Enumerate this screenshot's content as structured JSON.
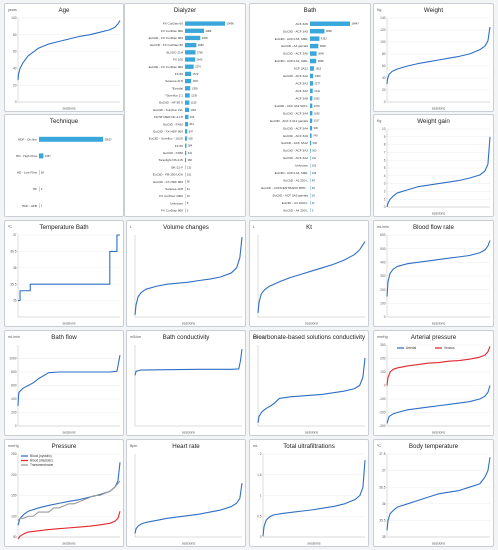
{
  "chart_data": [
    {
      "id": "age",
      "type": "line",
      "title": "Age",
      "unit": "years",
      "xlabel": "sessions",
      "ylim": [
        0,
        100
      ],
      "yticks": [
        0,
        20,
        40,
        60,
        80,
        100
      ],
      "series": [
        {
          "color": "#2f6fc4",
          "x": [
            0,
            0.005,
            0.02,
            0.05,
            0.1,
            0.2,
            0.3,
            0.4,
            0.5,
            0.6,
            0.7,
            0.8,
            0.9,
            0.95,
            0.98,
            1
          ],
          "values": [
            26,
            33,
            40,
            47,
            55,
            64,
            69,
            72,
            75,
            78,
            80,
            83,
            86,
            89,
            93,
            97
          ]
        }
      ]
    },
    {
      "id": "dialyzer",
      "type": "bar",
      "title": "Dialyzer",
      "color": "#3aa7dc",
      "categories": [
        "FX CorDiax 60",
        "FX CorDiax 800",
        "EuCliD - FX CorDiax 600",
        "EuCliD - FX CorDiax 80",
        "ELISIO 21H",
        "FX 100",
        "EuCliD - FX CorDiax 800",
        "FX 80",
        "Solacea 21H",
        "*Evodial",
        "*Sureflux 2.1",
        "EuCliD - HF 80 S",
        "EuCliD - Sureflux 21L",
        "FILTRYZER NF-2.1H",
        "EuCliD - FX60",
        "EuCliD - FX-HDF 600",
        "EuCliD - Sureflux - 15UX",
        "FX 60",
        "EuCliD - FX80",
        "Toraylight NS 21S",
        "BK-21-F",
        "EuCliD - FB-190 UGA",
        "EuCliD - FX-HDF 800",
        "Solacea 19H",
        "FX CorDiax 1000",
        "Unknown",
        "FX CorDiax 800"
      ],
      "values": [
        10496,
        4989,
        4008,
        2980,
        2760,
        2640,
        2276,
        1579,
        1607,
        1358,
        1239,
        1155,
        1061,
        916,
        812,
        597,
        505,
        384,
        331,
        280,
        132,
        101,
        90,
        51,
        20,
        8,
        3
      ]
    },
    {
      "id": "bath",
      "type": "bar",
      "title": "Bath",
      "color": "#3aa7dc",
      "categories": [
        "ACF 3A5",
        "EuCliD - ACF 3A5",
        "EuCliD - ACF3 A5, 600L",
        "EuCliD - A4 garrafa",
        "EuCliD - ACF 3A6",
        "EuCliD - ACF3 A2, 600L",
        "ACF 3A12",
        "EuCliD - ACF 3A2",
        "ACF 3A3",
        "ACF 3A2",
        "ACF 3A6",
        "EuCliD - ACF 3A2 500 L",
        "EuCliD - ACF 3A4",
        "EuCliD - ACF 3 A12 garrafa",
        "EuCliD - ACF 3A4",
        "EuCliD - ACF 3A6",
        "EuCliD - ACF 3A12",
        "EuCliD - ACF 3A3",
        "EuCliD - ACF 3A2",
        "Unknown",
        "EuCliD - ACF3 A4, 600L",
        "EuCliD - A2 250 L",
        "EuCliD - CONCENTRADO BHD...",
        "EuCliD - ACF 3A5 garrafa",
        "EuCliD - A4 1000 L",
        "EuCliD - A4 250 L"
      ],
      "values": [
        18447,
        6668,
        4352,
        3848,
        3045,
        2868,
        1815,
        1450,
        1377,
        1241,
        1092,
        1070,
        1090,
        1017,
        936,
        749,
        536,
        303,
        211,
        162,
        106,
        49,
        25,
        18,
        11,
        3
      ]
    },
    {
      "id": "weight",
      "type": "line",
      "title": "Weight",
      "unit": "Kg",
      "xlabel": "sessions",
      "ylim": [
        0,
        140
      ],
      "yticks": [
        0,
        20,
        40,
        60,
        80,
        100,
        120,
        140
      ],
      "series": [
        {
          "color": "#2f6fc4",
          "x": [
            0,
            0.005,
            0.02,
            0.05,
            0.1,
            0.2,
            0.3,
            0.4,
            0.5,
            0.6,
            0.7,
            0.8,
            0.9,
            0.95,
            0.98,
            1
          ],
          "values": [
            30,
            38,
            46,
            51,
            55,
            60,
            64,
            67,
            70,
            73,
            76,
            80,
            87,
            93,
            102,
            125
          ]
        }
      ]
    },
    {
      "id": "technique",
      "type": "bar",
      "title": "Technique",
      "color": "#3aa7dc",
      "categories": [
        "HDF - On line",
        "HD - High Flow",
        "HD - Low Flow",
        "HF",
        "HDF - AFB"
      ],
      "values": [
        35637,
        2457,
        58,
        3,
        1
      ]
    },
    {
      "id": "weightgain",
      "type": "line",
      "title": "Weight gain",
      "unit": "Kg",
      "xlabel": "sessions",
      "ylim": [
        0,
        10
      ],
      "yticks": [
        0,
        1,
        2,
        3,
        4,
        5,
        6,
        7,
        8,
        9,
        10
      ],
      "series": [
        {
          "color": "#2f6fc4",
          "x": [
            0,
            0.01,
            0.03,
            0.06,
            0.1,
            0.2,
            0.3,
            0.4,
            0.5,
            0.6,
            0.7,
            0.8,
            0.9,
            0.95,
            0.98,
            1
          ],
          "values": [
            0,
            0.5,
            1,
            1.4,
            1.8,
            2.2,
            2.6,
            2.8,
            3.0,
            3.2,
            3.4,
            3.7,
            4.1,
            4.6,
            5.5,
            9
          ]
        }
      ]
    },
    {
      "id": "tempbath",
      "type": "line",
      "title": "Temperature Bath",
      "unit": "ºC",
      "xlabel": "sessions",
      "ylim": [
        34.5,
        37
      ],
      "yticks": [
        35,
        35.5,
        36,
        36.5,
        37
      ],
      "series": [
        {
          "color": "#2f6fc4",
          "x": [
            0,
            0.02,
            0.02,
            0.12,
            0.12,
            0.9,
            0.9,
            0.97,
            0.97,
            1
          ],
          "values": [
            35,
            35,
            35.3,
            35.3,
            35.5,
            35.5,
            36.5,
            36.5,
            37,
            37
          ]
        }
      ]
    },
    {
      "id": "volchanges",
      "type": "line",
      "title": "Volume changes",
      "unit": "L",
      "xlabel": "sessions",
      "ylim": [
        0,
        4
      ],
      "yticks": [],
      "series": [
        {
          "color": "#2f6fc4",
          "x": [
            0,
            0.01,
            0.03,
            0.06,
            0.1,
            0.2,
            0.3,
            0.4,
            0.5,
            0.6,
            0.7,
            0.8,
            0.9,
            0.95,
            0.98,
            1
          ],
          "values": [
            0.1,
            0.6,
            1.0,
            1.2,
            1.35,
            1.5,
            1.6,
            1.65,
            1.7,
            1.78,
            1.85,
            1.95,
            2.15,
            2.4,
            2.9,
            3.9
          ]
        }
      ]
    },
    {
      "id": "kt",
      "type": "line",
      "title": "Kt",
      "unit": "L",
      "xlabel": "sessions",
      "ylim": [
        0,
        100
      ],
      "yticks": [],
      "series": [
        {
          "color": "#2f6fc4",
          "x": [
            0,
            0.01,
            0.03,
            0.06,
            0.1,
            0.2,
            0.3,
            0.4,
            0.5,
            0.6,
            0.7,
            0.8,
            0.9,
            0.95,
            0.98,
            1
          ],
          "values": [
            5,
            18,
            28,
            33,
            37,
            43,
            48,
            52,
            56,
            60,
            64,
            69,
            76,
            82,
            88,
            92
          ]
        }
      ]
    },
    {
      "id": "bloodflow",
      "type": "line",
      "title": "Blood flow rate",
      "unit": "mL/min",
      "xlabel": "sessions",
      "ylim": [
        0,
        600
      ],
      "yticks": [
        0,
        100,
        200,
        300,
        400,
        500,
        600
      ],
      "series": [
        {
          "color": "#2f6fc4",
          "x": [
            0,
            0.01,
            0.03,
            0.06,
            0.1,
            0.2,
            0.3,
            0.4,
            0.5,
            0.6,
            0.7,
            0.8,
            0.9,
            0.95,
            0.98,
            1
          ],
          "values": [
            150,
            260,
            320,
            350,
            370,
            390,
            400,
            410,
            420,
            430,
            440,
            450,
            470,
            490,
            520,
            560
          ]
        }
      ]
    },
    {
      "id": "bathflow",
      "type": "line",
      "title": "Bath flow",
      "unit": "mL/min",
      "xlabel": "sessions",
      "ylim": [
        0,
        1200
      ],
      "yticks": [
        0,
        200,
        400,
        600,
        800,
        1000
      ],
      "series": [
        {
          "color": "#2f6fc4",
          "x": [
            0,
            0.005,
            0.01,
            0.03,
            0.05,
            0.1,
            0.15,
            0.2,
            0.3,
            0.4,
            0.5,
            0.6,
            0.7,
            0.8,
            0.9,
            0.97,
            1
          ],
          "values": [
            300,
            440,
            500,
            530,
            560,
            600,
            640,
            700,
            790,
            800,
            800,
            800,
            800,
            800,
            800,
            810,
            1050
          ]
        }
      ]
    },
    {
      "id": "bathcond",
      "type": "line",
      "title": "Bath conductivity",
      "unit": "mS/cm",
      "xlabel": "sessions",
      "ylim": [
        0,
        20
      ],
      "yticks": [],
      "series": [
        {
          "color": "#2f6fc4",
          "x": [
            0,
            0.01,
            0.05,
            0.3,
            0.6,
            0.9,
            0.97,
            0.985,
            1
          ],
          "values": [
            12.5,
            13.5,
            13.8,
            13.9,
            14,
            14,
            14.1,
            16,
            19
          ]
        }
      ]
    },
    {
      "id": "bicarbcond",
      "type": "line",
      "title": "Bicarbonate-based solutions conductivity",
      "unit": "mS/cm",
      "xlabel": "sessions",
      "ylim": [
        0,
        5
      ],
      "yticks": [],
      "series": [
        {
          "color": "#2f6fc4",
          "x": [
            0,
            0.01,
            0.04,
            0.08,
            0.12,
            0.16,
            0.2,
            0.3,
            0.4,
            0.5,
            0.6,
            0.7,
            0.8,
            0.9,
            0.95,
            0.98,
            1
          ],
          "values": [
            0.2,
            0.6,
            0.9,
            1.1,
            1.25,
            1.45,
            1.7,
            1.8,
            1.85,
            1.9,
            1.95,
            2.05,
            2.15,
            2.3,
            2.5,
            3.0,
            4.2
          ]
        }
      ]
    },
    {
      "id": "arterial",
      "type": "line",
      "title": "Arterial pressure",
      "unit": "mmHg",
      "xlabel": "sessions",
      "ylim": [
        -300,
        300
      ],
      "yticks": [
        -300,
        -200,
        -100,
        0,
        100,
        200,
        300
      ],
      "legend_position": "top",
      "series": [
        {
          "name": "Arterial",
          "color": "#2f6fc4",
          "x": [
            0,
            0.02,
            0.06,
            0.1,
            0.2,
            0.3,
            0.4,
            0.5,
            0.6,
            0.7,
            0.8,
            0.9,
            0.95,
            0.98,
            1
          ],
          "values": [
            -280,
            -230,
            -210,
            -200,
            -180,
            -170,
            -160,
            -150,
            -140,
            -130,
            -120,
            -100,
            -80,
            -50,
            0
          ]
        },
        {
          "name": "Venous",
          "color": "#e0282e",
          "x": [
            0,
            0.01,
            0.03,
            0.06,
            0.1,
            0.2,
            0.3,
            0.4,
            0.5,
            0.6,
            0.7,
            0.8,
            0.9,
            0.95,
            0.98,
            1
          ],
          "values": [
            0,
            60,
            100,
            120,
            130,
            145,
            155,
            165,
            170,
            180,
            185,
            195,
            210,
            225,
            250,
            290
          ]
        }
      ]
    },
    {
      "id": "pressure",
      "type": "line",
      "title": "Pressure",
      "unit": "mmHg",
      "xlabel": "sessions",
      "ylim": [
        50,
        250
      ],
      "yticks": [
        50,
        100,
        150,
        200,
        250
      ],
      "legend_position": "top-left",
      "series": [
        {
          "name": "Blood (systolic)",
          "color": "#2f6fc4",
          "x": [
            0,
            0.02,
            0.06,
            0.1,
            0.2,
            0.3,
            0.4,
            0.5,
            0.6,
            0.7,
            0.8,
            0.9,
            0.95,
            0.98,
            1
          ],
          "values": [
            78,
            95,
            105,
            112,
            120,
            126,
            131,
            136,
            140,
            146,
            152,
            160,
            170,
            185,
            230
          ]
        },
        {
          "name": "Blood (diastolic)",
          "color": "#e0282e",
          "x": [
            0,
            0.02,
            0.06,
            0.1,
            0.2,
            0.3,
            0.4,
            0.5,
            0.6,
            0.7,
            0.8,
            0.9,
            0.95,
            0.98,
            1
          ],
          "values": [
            45,
            52,
            58,
            62,
            65,
            68,
            70,
            72,
            74,
            76,
            79,
            83,
            88,
            95,
            112
          ]
        },
        {
          "name": "Transmembrane",
          "color": "#9a9a9a",
          "x": [
            0,
            0.02,
            0.05,
            0.1,
            0.15,
            0.2,
            0.25,
            0.3,
            0.35,
            0.4,
            0.45,
            0.5,
            0.55,
            0.6,
            0.65,
            0.7,
            0.75,
            0.8,
            0.85,
            0.9,
            0.95,
            1
          ],
          "values": [
            90,
            95,
            95,
            100,
            100,
            110,
            110,
            110,
            120,
            120,
            125,
            130,
            130,
            135,
            140,
            145,
            150,
            150,
            155,
            160,
            170,
            185
          ]
        }
      ]
    },
    {
      "id": "heartrate",
      "type": "line",
      "title": "Heart rate",
      "unit": "Bpm",
      "xlabel": "sessions",
      "ylim": [
        40,
        160
      ],
      "yticks": [],
      "series": [
        {
          "color": "#2f6fc4",
          "x": [
            0,
            0.01,
            0.03,
            0.06,
            0.1,
            0.2,
            0.3,
            0.4,
            0.5,
            0.6,
            0.7,
            0.8,
            0.9,
            0.95,
            0.98,
            1
          ],
          "values": [
            45,
            52,
            56,
            59,
            61,
            64,
            67,
            69,
            71,
            73,
            76,
            79,
            84,
            89,
            96,
            118
          ]
        }
      ]
    },
    {
      "id": "totaluf",
      "type": "line",
      "title": "Total ultrafiltrations",
      "unit": "mL",
      "xlabel": "sessions",
      "ylim": [
        0,
        2
      ],
      "yticks": [
        0,
        0.5,
        1,
        1.5,
        2
      ],
      "series": [
        {
          "color": "#2f6fc4",
          "x": [
            0,
            0.01,
            0.03,
            0.06,
            0.1,
            0.2,
            0.3,
            0.4,
            0.5,
            0.6,
            0.7,
            0.8,
            0.9,
            0.95,
            0.98,
            1
          ],
          "values": [
            0.02,
            0.25,
            0.4,
            0.48,
            0.53,
            0.57,
            0.6,
            0.63,
            0.66,
            0.7,
            0.74,
            0.8,
            0.9,
            1.0,
            1.2,
            1.85
          ]
        }
      ]
    },
    {
      "id": "bodytemp",
      "type": "line",
      "title": "Body temperature",
      "unit": "ºC",
      "xlabel": "sessions",
      "ylim": [
        35,
        37.5
      ],
      "yticks": [
        35,
        35.5,
        36,
        36.5,
        37,
        37.5
      ],
      "series": [
        {
          "color": "#2f6fc4",
          "x": [
            0,
            0.01,
            0.03,
            0.06,
            0.1,
            0.2,
            0.3,
            0.4,
            0.5,
            0.6,
            0.7,
            0.8,
            0.9,
            0.95,
            0.98,
            1
          ],
          "values": [
            35.2,
            35.5,
            35.7,
            35.8,
            35.9,
            36.0,
            36.1,
            36.2,
            36.3,
            36.35,
            36.4,
            36.5,
            36.6,
            36.8,
            37.0,
            37.4
          ]
        }
      ]
    }
  ]
}
